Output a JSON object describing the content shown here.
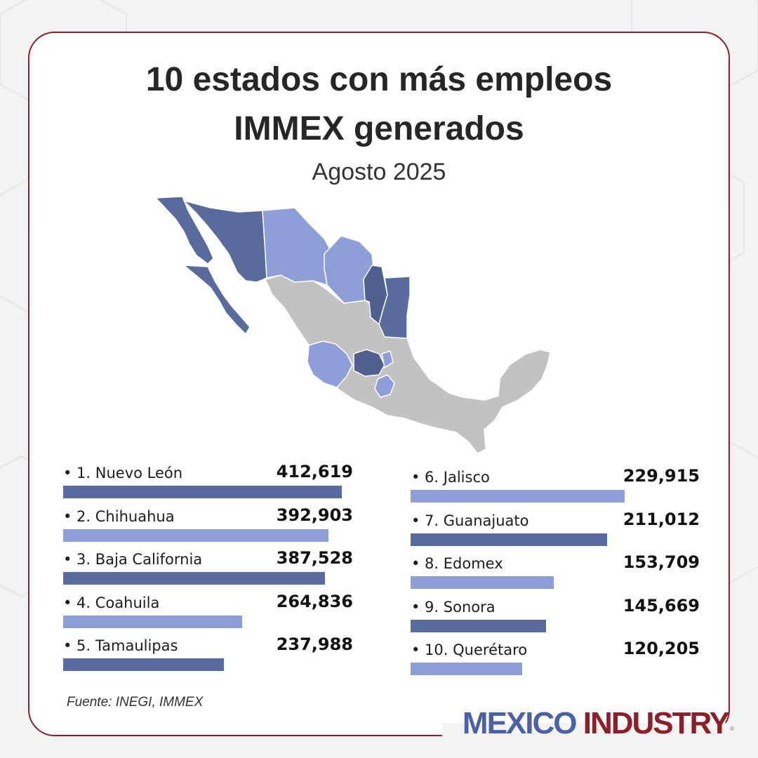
{
  "header": {
    "title_line1": "10 estados con más empleos",
    "title_line2": "IMMEX generados",
    "subtitle": "Agosto 2025"
  },
  "colors": {
    "dark_bar": "#596a9c",
    "light_bar": "#8e9ed9",
    "map_other": "#c2c2c2",
    "border": "#8c1f2a"
  },
  "chart_data": {
    "type": "bar",
    "title": "10 estados con más empleos IMMEX generados",
    "subtitle": "Agosto 2025",
    "categories": [
      "1. Nuevo León",
      "2. Chihuahua",
      "3. Baja California",
      "4. Coahuila",
      "5. Tamaulipas",
      "6. Jalisco",
      "7. Guanajuato",
      "8. Edomex",
      "9. Sonora",
      "10. Querétaro"
    ],
    "values": [
      412619,
      392903,
      387528,
      264836,
      237988,
      229915,
      211012,
      153709,
      145669,
      120205
    ],
    "value_labels": [
      "412,619",
      "392,903",
      "387,528",
      "264,836",
      "237,988",
      "229,915",
      "211,012",
      "153,709",
      "145,669",
      "120,205"
    ],
    "bar_colors": [
      "dark",
      "light",
      "dark",
      "light",
      "dark",
      "light",
      "dark",
      "light",
      "dark",
      "light"
    ],
    "bullet": "•"
  },
  "footer": {
    "source": "Fuente: INEGI, IMMEX",
    "logo_word1": "MEXICO",
    "logo_word2": "INDUSTRY",
    "logo_mark": "®"
  }
}
